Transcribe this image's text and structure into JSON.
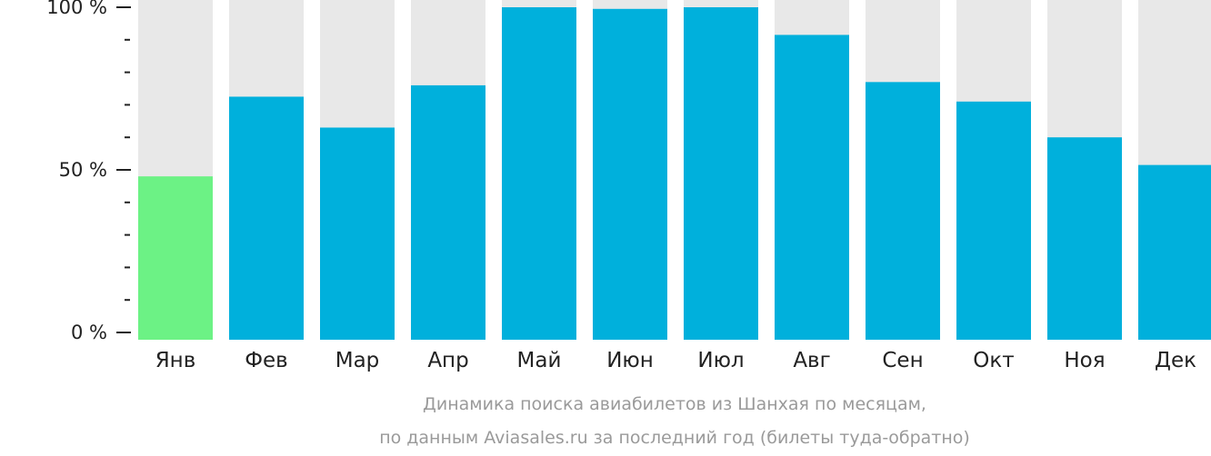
{
  "chart_data": {
    "type": "bar",
    "categories": [
      "Янв",
      "Фев",
      "Мар",
      "Апр",
      "Май",
      "Июн",
      "Июл",
      "Авг",
      "Сен",
      "Окт",
      "Ноя",
      "Дек"
    ],
    "values": [
      48,
      72.5,
      63,
      76,
      100,
      99.5,
      100,
      91.5,
      77,
      71,
      60,
      51.5
    ],
    "ylim": [
      0,
      100
    ],
    "y_ticks": [
      {
        "value": 0,
        "label": "0 %"
      },
      {
        "value": 50,
        "label": "50 %"
      },
      {
        "value": 100,
        "label": "100 %"
      }
    ],
    "y_minor_step": 10,
    "highlight_index": 0,
    "colors": {
      "bar": "#00b0dc",
      "highlight": "#6cf285",
      "track": "#e8e8e8",
      "axis": "#222222",
      "caption": "#9a9a9a"
    },
    "caption_line1": "Динамика поиска авиабилетов из Шанхая по месяцам,",
    "caption_line2": "по данным Aviasales.ru за последний год (билеты туда-обратно)"
  }
}
